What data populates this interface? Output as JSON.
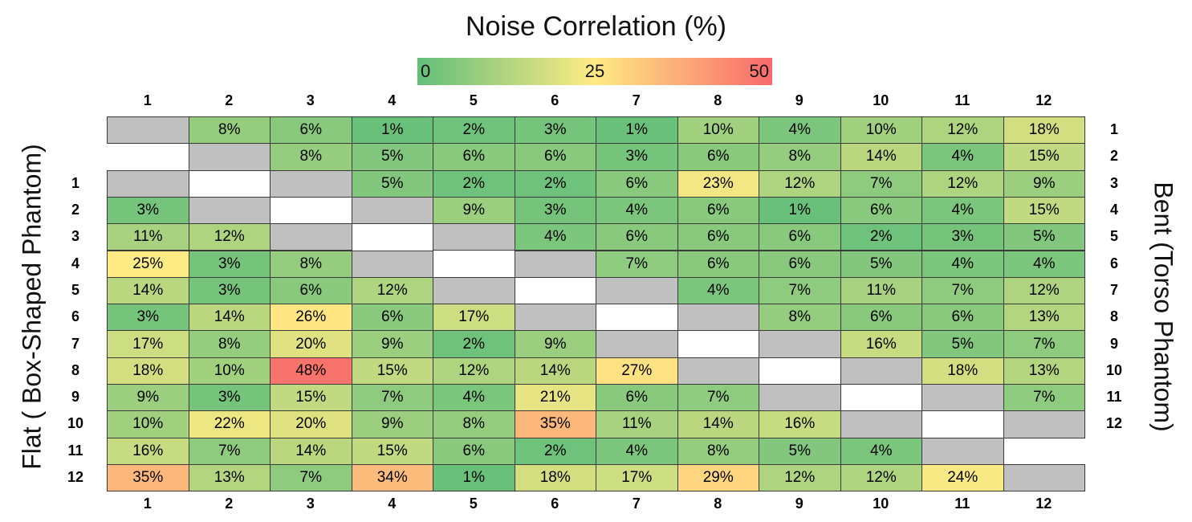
{
  "chart_data": {
    "type": "heatmap",
    "title": "Noise Correlation (%)",
    "colorbar": {
      "ticks": [
        "0",
        "25",
        "50"
      ],
      "min": 0,
      "max": 50,
      "colors": [
        "#63be7b",
        "#ffeb84",
        "#f8696b"
      ]
    },
    "left_label": "Flat ( Box-Shaped Phantom)",
    "right_label": "Bent (Torso Phantom)",
    "column_labels": [
      "1",
      "2",
      "3",
      "4",
      "5",
      "6",
      "7",
      "8",
      "9",
      "10",
      "11",
      "12"
    ],
    "left_row_labels": [
      "1",
      "2",
      "3",
      "4",
      "5",
      "6",
      "7",
      "8",
      "9",
      "10",
      "11",
      "12"
    ],
    "right_row_labels": [
      "1",
      "2",
      "3",
      "4",
      "5",
      "6",
      "7",
      "8",
      "9",
      "10",
      "11",
      "12"
    ],
    "bent_matrix_upper": [
      [
        null,
        8,
        6,
        1,
        2,
        3,
        1,
        10,
        4,
        10,
        12,
        18
      ],
      [
        null,
        null,
        8,
        5,
        6,
        6,
        3,
        6,
        8,
        14,
        4,
        15
      ],
      [
        null,
        null,
        null,
        5,
        2,
        2,
        6,
        23,
        12,
        7,
        12,
        9
      ],
      [
        null,
        null,
        null,
        null,
        9,
        3,
        4,
        6,
        1,
        6,
        4,
        15
      ],
      [
        null,
        null,
        null,
        null,
        null,
        4,
        6,
        6,
        6,
        2,
        3,
        5
      ],
      [
        null,
        null,
        null,
        null,
        null,
        null,
        7,
        6,
        6,
        5,
        4,
        4
      ],
      [
        null,
        null,
        null,
        null,
        null,
        null,
        null,
        4,
        7,
        11,
        7,
        12
      ],
      [
        null,
        null,
        null,
        null,
        null,
        null,
        null,
        null,
        8,
        6,
        6,
        13
      ],
      [
        null,
        null,
        null,
        null,
        null,
        null,
        null,
        null,
        null,
        16,
        5,
        7
      ],
      [
        null,
        null,
        null,
        null,
        null,
        null,
        null,
        null,
        null,
        null,
        18,
        13
      ],
      [
        null,
        null,
        null,
        null,
        null,
        null,
        null,
        null,
        null,
        null,
        null,
        7
      ],
      [
        null,
        null,
        null,
        null,
        null,
        null,
        null,
        null,
        null,
        null,
        null,
        null
      ]
    ],
    "flat_matrix_lower": [
      [
        null,
        null,
        null,
        null,
        null,
        null,
        null,
        null,
        null,
        null,
        null,
        null
      ],
      [
        3,
        null,
        null,
        null,
        null,
        null,
        null,
        null,
        null,
        null,
        null,
        null
      ],
      [
        11,
        12,
        null,
        null,
        null,
        null,
        null,
        null,
        null,
        null,
        null,
        null
      ],
      [
        25,
        3,
        8,
        null,
        null,
        null,
        null,
        null,
        null,
        null,
        null,
        null
      ],
      [
        14,
        3,
        6,
        12,
        null,
        null,
        null,
        null,
        null,
        null,
        null,
        null
      ],
      [
        3,
        14,
        26,
        6,
        17,
        null,
        null,
        null,
        null,
        null,
        null,
        null
      ],
      [
        17,
        8,
        20,
        9,
        2,
        9,
        null,
        null,
        null,
        null,
        null,
        null
      ],
      [
        18,
        10,
        48,
        15,
        12,
        14,
        27,
        null,
        null,
        null,
        null,
        null
      ],
      [
        9,
        3,
        15,
        7,
        4,
        21,
        6,
        7,
        null,
        null,
        null,
        null
      ],
      [
        10,
        22,
        20,
        9,
        8,
        35,
        11,
        14,
        16,
        null,
        null,
        null
      ],
      [
        16,
        7,
        14,
        15,
        6,
        2,
        4,
        8,
        5,
        4,
        null,
        null
      ],
      [
        35,
        13,
        7,
        34,
        1,
        18,
        17,
        29,
        12,
        12,
        24,
        null
      ]
    ],
    "diagonal_color": "#c0c0c0",
    "blank_color": "#ffffff"
  }
}
